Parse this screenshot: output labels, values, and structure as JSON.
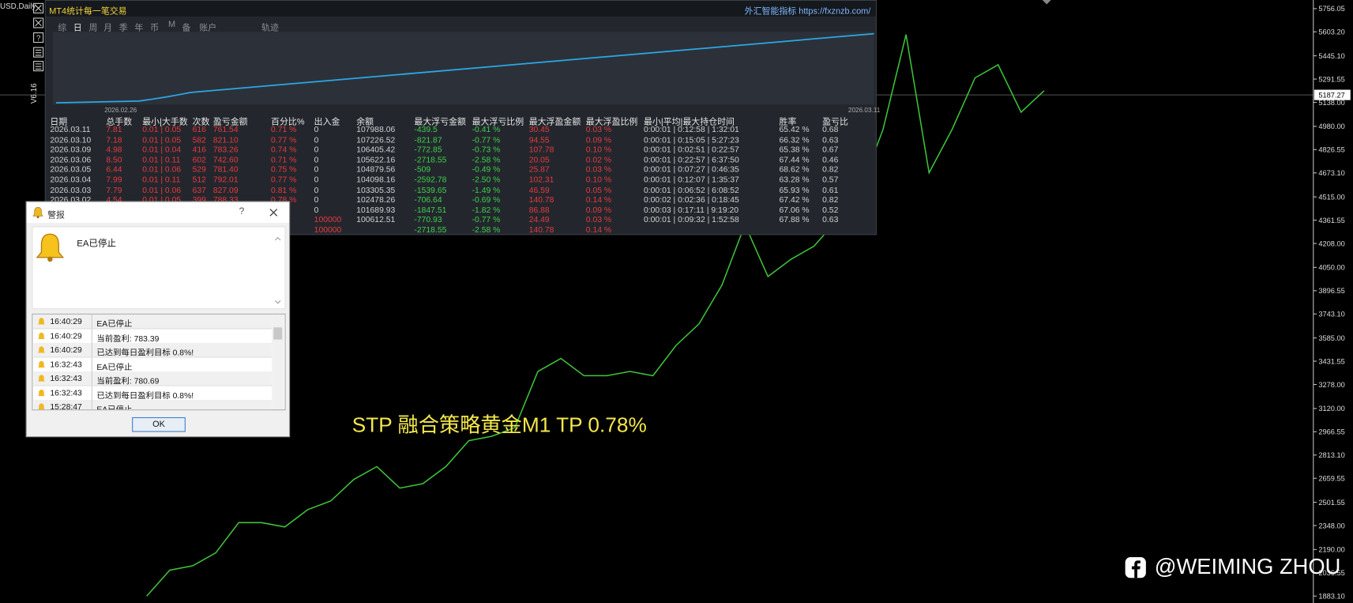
{
  "window": {
    "symbol": "USD,Daily",
    "side_label": "V6.16"
  },
  "panel": {
    "title": "MT4统计每一笔交易",
    "link": "外汇智能指标 https://fxznzb.com/",
    "tabs": [
      "综",
      "日",
      "周",
      "月",
      "季",
      "年",
      "币",
      "M",
      "备",
      "账户",
      "轨迹"
    ],
    "chart_start": "2026.02.26",
    "chart_end": "2026.03.11",
    "headers": [
      "日期",
      "总手数",
      "最小|大手数",
      "次数",
      "盈亏金额",
      "百分比%",
      "出入金",
      "余额",
      "最大浮亏金额",
      "最大浮亏比例",
      "最大浮盈金额",
      "最大浮盈比例",
      "最小|平均|最大持仓时间",
      "胜率",
      "盈亏比"
    ],
    "rows": [
      [
        "2026.03.11",
        "7.81",
        "0.01 | 0.05",
        "616",
        "761.54",
        "0.71 %",
        "0",
        "107988.06",
        "-439.5",
        "-0.41 %",
        "30.45",
        "0.03 %",
        "0:00:01 | 0:12:58 | 1:32:01",
        "65.42 %",
        "0.68"
      ],
      [
        "2026.03.10",
        "7.18",
        "0.01 | 0.05",
        "582",
        "821.10",
        "0.77 %",
        "0",
        "107226.52",
        "-821.87",
        "-0.77 %",
        "94.55",
        "0.09 %",
        "0:00:01 | 0:15:05 | 5:27:23",
        "66.32 %",
        "0.63"
      ],
      [
        "2026.03.09",
        "4.98",
        "0.01 | 0.04",
        "416",
        "783.26",
        "0.74 %",
        "0",
        "106405.42",
        "-772.85",
        "-0.73 %",
        "107.78",
        "0.10 %",
        "0:00:01 | 0:02:51 | 0:22:57",
        "65.38 %",
        "0.67"
      ],
      [
        "2026.03.06",
        "8.50",
        "0.01 | 0.11",
        "602",
        "742.60",
        "0.71 %",
        "0",
        "105622.16",
        "-2718.55",
        "-2.58 %",
        "20.05",
        "0.02 %",
        "0:00:01 | 0:22:57 | 6:37:50",
        "67.44 %",
        "0.46"
      ],
      [
        "2026.03.05",
        "6.44",
        "0.01 | 0.06",
        "529",
        "781.40",
        "0.75 %",
        "0",
        "104879.56",
        "-509",
        "-0.49 %",
        "25.87",
        "0.03 %",
        "0:00:01 | 0:07:27 | 0:46:35",
        "68.62 %",
        "0.82"
      ],
      [
        "2026.03.04",
        "7.99",
        "0.01 | 0.11",
        "512",
        "792.01",
        "0.77 %",
        "0",
        "104098.16",
        "-2592.78",
        "-2.50 %",
        "102.31",
        "0.10 %",
        "0:00:01 | 0:12:07 | 1:35:37",
        "63.28 %",
        "0.57"
      ],
      [
        "2026.03.03",
        "7.79",
        "0.01 | 0.06",
        "637",
        "827.09",
        "0.81 %",
        "0",
        "103305.35",
        "-1539.65",
        "-1.49 %",
        "46.59",
        "0.05 %",
        "0:00:01 | 0:06:52 | 6:08:52",
        "65.93 %",
        "0.61"
      ],
      [
        "2026.03.02",
        "4.54",
        "0.01 | 0.05",
        "399",
        "788.33",
        "0.78 %",
        "0",
        "102478.26",
        "-706.64",
        "-0.69 %",
        "140.78",
        "0.14 %",
        "0:00:02 | 0:02:36 | 0:18:45",
        "67.42 %",
        "0.82"
      ],
      [
        null,
        null,
        null,
        null,
        null,
        null,
        "0",
        "101689.93",
        "-1847.51",
        "-1.82 %",
        "86.88",
        "0.09 %",
        "0:00:03 | 0:17:11 | 9:19:20",
        "67.06 %",
        "0.52"
      ],
      [
        null,
        null,
        null,
        null,
        null,
        null,
        "100000",
        "100612.51",
        "-770.93",
        "-0.77 %",
        "24.49",
        "0.03 %",
        "0:00:01 | 0:09:32 | 1:52:58",
        "67.88 %",
        "0.63"
      ],
      [
        null,
        null,
        null,
        null,
        null,
        null,
        "100000",
        null,
        "-2718.55",
        "-2.58 %",
        "140.78",
        "0.14 %",
        null,
        null,
        null
      ]
    ]
  },
  "price_chart": {
    "axis_ticks": [
      5756.05,
      {
        "value": 5603.2,
        "label": "5603.20"
      },
      {
        "value": 5445.1,
        "label": "5445.10"
      },
      5291.55,
      {
        "value": 5138,
        "label": "5138.00"
      },
      {
        "value": 4980,
        "label": "4980.00"
      },
      4826.55,
      {
        "value": 4673.1,
        "label": "4673.10"
      },
      {
        "value": 4515,
        "label": "4515.00"
      },
      4361.55,
      {
        "value": 4208,
        "label": "4208.00"
      },
      {
        "value": 4050,
        "label": "4050.00"
      },
      3896.55,
      {
        "value": 3743.1,
        "label": "3743.10"
      },
      {
        "value": 3585,
        "label": "3585.00"
      },
      3431.55,
      {
        "value": 3278,
        "label": "3278.00"
      },
      {
        "value": 3120,
        "label": "3120.00"
      },
      2966.55,
      {
        "value": 2813.1,
        "label": "2813.10"
      },
      2659.55,
      2501.55,
      {
        "value": 2348,
        "label": "2348.00"
      },
      {
        "value": 2190,
        "label": "2190.00"
      },
      2036.55,
      {
        "value": 1883.1,
        "label": "1883.10"
      }
    ],
    "current_price": 5187.27,
    "values": [
      1883,
      2054,
      2083,
      2168,
      2367,
      2367,
      2339,
      2453,
      2510,
      2652,
      2737,
      2595,
      2624,
      2737,
      2908,
      2937,
      2994,
      3364,
      3450,
      3336,
      3336,
      3364,
      3336,
      3535,
      3677,
      3934,
      4332,
      3990,
      4104,
      4190,
      4361,
      4560,
      4959,
      5585,
      4674,
      4959,
      5300,
      5386,
      5073,
      5215
    ],
    "annotation": "STP 融合策略黄金M1 TP 0.78%",
    "watermark": "@WEIMING ZHOU"
  },
  "alert": {
    "title": "警报",
    "help": "?",
    "message": "EA已停止",
    "log": [
      [
        "16:40:29",
        "EA已停止"
      ],
      [
        "16:40:29",
        "当前盈利: 783.39"
      ],
      [
        "16:40:29",
        "已达到每日盈利目标 0.8%!"
      ],
      [
        "16:32:43",
        "EA已停止"
      ],
      [
        "16:32:43",
        "当前盈利: 780.69"
      ],
      [
        "16:32:43",
        "已达到每日盈利目标 0.8%!"
      ],
      [
        "15:28:47",
        "EA已停止"
      ]
    ],
    "ok": "OK"
  }
}
